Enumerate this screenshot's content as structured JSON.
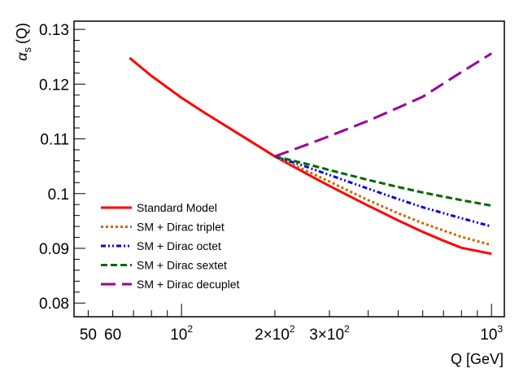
{
  "chart_data": {
    "type": "line",
    "title": "",
    "xlabel": "Q [GeV]",
    "ylabel": "αs (Q)",
    "ylabel_symbol": "α",
    "ylabel_sub": "s",
    "ylabel_arg": "(Q)",
    "xscale": "log",
    "xlim": [
      45,
      1100
    ],
    "ylim": [
      0.0775,
      0.1315
    ],
    "grid": false,
    "legend_position": "bottom-left",
    "x_tick_labels": [
      {
        "value": 50,
        "text": "50"
      },
      {
        "value": 60,
        "text": "60"
      },
      {
        "value": 100,
        "base": "10",
        "exp": "2"
      },
      {
        "value": 200,
        "mant": "2",
        "base": "10",
        "exp": "2"
      },
      {
        "value": 300,
        "mant": "3",
        "base": "10",
        "exp": "2"
      },
      {
        "value": 1000,
        "base": "10",
        "exp": "3"
      }
    ],
    "y_ticks": [
      0.08,
      0.09,
      0.1,
      0.11,
      0.12,
      0.13
    ],
    "y_tick_labels": [
      "0.08",
      "0.09",
      "0.1",
      "0.11",
      "0.12",
      "0.13"
    ],
    "series": [
      {
        "name": "Standard Model",
        "color": "#ff0000",
        "dash": "solid",
        "x": [
          68,
          80,
          100,
          120,
          150,
          200,
          250,
          300,
          400,
          500,
          600,
          700,
          800,
          1000
        ],
        "y": [
          0.1248,
          0.1215,
          0.1175,
          0.1146,
          0.1112,
          0.1068,
          0.1038,
          0.1014,
          0.0978,
          0.0951,
          0.093,
          0.0914,
          0.0901,
          0.089
        ]
      },
      {
        "name": "SM + Dirac triplet",
        "color": "#cc6600",
        "dash": "dotted",
        "x": [
          200,
          250,
          300,
          400,
          500,
          600,
          800,
          1000
        ],
        "y": [
          0.1068,
          0.1043,
          0.1022,
          0.0988,
          0.0964,
          0.0946,
          0.0921,
          0.0906
        ]
      },
      {
        "name": "SM + Dirac octet",
        "color": "#0000ee",
        "dash": "dashdot",
        "x": [
          200,
          250,
          300,
          400,
          500,
          600,
          800,
          1000
        ],
        "y": [
          0.1068,
          0.105,
          0.1034,
          0.1009,
          0.099,
          0.0975,
          0.0955,
          0.094
        ]
      },
      {
        "name": "SM + Dirac sextet",
        "color": "#006600",
        "dash": "dashed",
        "x": [
          200,
          250,
          300,
          400,
          500,
          600,
          800,
          1000
        ],
        "y": [
          0.1068,
          0.1055,
          0.1043,
          0.1025,
          0.1012,
          0.1002,
          0.0988,
          0.0978
        ]
      },
      {
        "name": "SM + Dirac decuplet",
        "color": "#990099",
        "dash": "longdash",
        "x": [
          200,
          250,
          300,
          400,
          500,
          600,
          800,
          1000
        ],
        "y": [
          0.1068,
          0.1088,
          0.1105,
          0.1133,
          0.1157,
          0.1177,
          0.1222,
          0.1256
        ]
      }
    ]
  }
}
